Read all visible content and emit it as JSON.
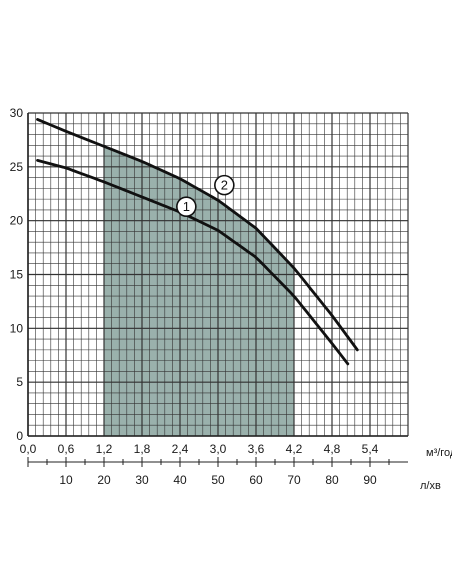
{
  "chart_data": {
    "type": "line",
    "title": "",
    "xlabel_primary_unit": "м³/год",
    "xlabel_secondary_unit": "л/хв",
    "ylabel": "",
    "xlim": [
      0,
      6.0
    ],
    "ylim": [
      0,
      30
    ],
    "x_ticks": [
      "0,0",
      "0,6",
      "1,2",
      "1,8",
      "2,4",
      "3,0",
      "3,6",
      "4,2",
      "4,8",
      "5,4"
    ],
    "x_tick_values": [
      0,
      0.6,
      1.2,
      1.8,
      2.4,
      3.0,
      3.6,
      4.2,
      4.8,
      5.4
    ],
    "x_secondary_ticks": [
      "10",
      "20",
      "30",
      "40",
      "50",
      "60",
      "70",
      "80",
      "90"
    ],
    "x_secondary_tick_values": [
      10,
      20,
      30,
      40,
      50,
      60,
      70,
      80,
      90
    ],
    "x_secondary_ratio_lpm_per_m3h": 16.667,
    "y_ticks": [
      "0",
      "5",
      "10",
      "15",
      "20",
      "25",
      "30"
    ],
    "y_tick_values": [
      0,
      5,
      10,
      15,
      20,
      25,
      30
    ],
    "grid": true,
    "grid_minor_x_step": 0.12,
    "grid_minor_y_step": 1,
    "working_zone": {
      "x_start": 1.2,
      "x_end": 4.2,
      "color": "#8fa8a3"
    },
    "series": [
      {
        "label": "1",
        "color": "#111111",
        "x": [
          0.15,
          0.6,
          1.2,
          1.8,
          2.4,
          3.0,
          3.6,
          4.2,
          4.8,
          5.05
        ],
        "y": [
          25.6,
          24.9,
          23.6,
          22.2,
          20.8,
          19.1,
          16.6,
          13.0,
          8.6,
          6.7
        ],
        "marker_at": {
          "x": 2.5,
          "y": 21.3
        }
      },
      {
        "label": "2",
        "color": "#111111",
        "x": [
          0.15,
          0.6,
          1.2,
          1.8,
          2.4,
          3.0,
          3.6,
          4.2,
          4.8,
          5.2
        ],
        "y": [
          29.4,
          28.3,
          26.9,
          25.5,
          23.9,
          21.9,
          19.3,
          15.6,
          11.2,
          8.0
        ],
        "marker_at": {
          "x": 3.1,
          "y": 23.3
        }
      }
    ],
    "colors": {
      "background": "#ffffff",
      "grid_line": "#333333",
      "axis": "#222222",
      "zone_fill": "#8fa8a3",
      "curve": "#111111"
    }
  }
}
